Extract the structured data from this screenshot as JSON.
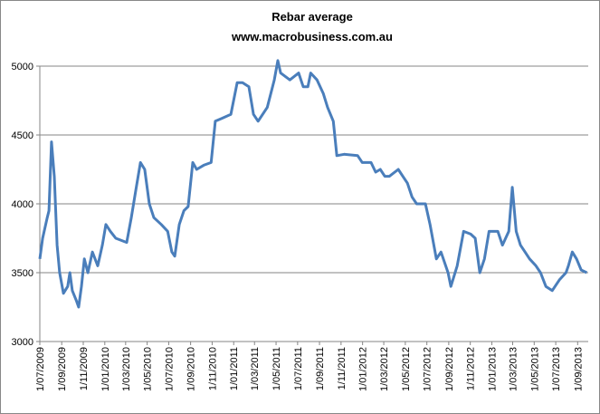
{
  "chart_data": {
    "type": "line",
    "title": "Rebar average",
    "subtitle": "www.macrobusiness.com.au",
    "x": [
      "1/07/2009",
      "9/07/2009",
      "22/07/2009",
      "27/07/2009",
      "3/08/2009",
      "11/08/2009",
      "19/08/2009",
      "26/08/2009",
      "6/09/2009",
      "18/09/2009",
      "24/09/2009",
      "1/10/2009",
      "12/10/2009",
      "19/10/2009",
      "27/10/2009",
      "4/11/2009",
      "14/11/2009",
      "27/11/2009",
      "12/12/2009",
      "25/12/2009",
      "4/01/2010",
      "17/01/2010",
      "1/02/2010",
      "4/03/2010",
      "17/03/2010",
      "30/03/2010",
      "12/04/2010",
      "24/04/2010",
      "7/05/2010",
      "20/05/2010",
      "10/06/2010",
      "28/06/2010",
      "10/07/2010",
      "18/07/2010",
      "31/07/2010",
      "13/08/2010",
      "25/08/2010",
      "7/09/2010",
      "18/09/2010",
      "8/10/2010",
      "29/10/2010",
      "10/11/2010",
      "28/11/2010",
      "24/12/2010",
      "11/01/2011",
      "26/01/2011",
      "13/02/2011",
      "26/02/2011",
      "11/03/2011",
      "6/04/2011",
      "26/04/2011",
      "6/05/2011",
      "14/05/2011",
      "9/06/2011",
      "4/07/2011",
      "17/07/2011",
      "30/07/2011",
      "7/08/2011",
      "25/08/2011",
      "12/09/2011",
      "24/09/2011",
      "10/10/2011",
      "20/10/2011",
      "10/11/2011",
      "18/12/2011",
      "31/12/2011",
      "25/01/2012",
      "7/02/2012",
      "20/02/2012",
      "4/03/2012",
      "17/03/2012",
      "11/04/2012",
      "24/04/2012",
      "7/05/2012",
      "20/05/2012",
      "2/06/2012",
      "27/06/2012",
      "10/07/2012",
      "28/07/2012",
      "10/08/2012",
      "30/08/2012",
      "7/09/2012",
      "25/09/2012",
      "13/10/2012",
      "2/11/2012",
      "15/11/2012",
      "28/11/2012",
      "11/12/2012",
      "24/12/2012",
      "18/01/2013",
      "31/01/2013",
      "18/02/2013",
      "28/02/2013",
      "11/03/2013",
      "23/03/2013",
      "5/04/2013",
      "18/04/2013",
      "6/05/2013",
      "19/05/2013",
      "3/06/2013",
      "21/06/2013",
      "12/07/2013",
      "30/07/2013",
      "6/08/2013",
      "17/08/2013",
      "29/08/2013",
      "11/09/2013",
      "27/09/2013"
    ],
    "series": [
      {
        "name": "Rebar average",
        "color": "#4a7ebb",
        "values": [
          3600,
          3750,
          3900,
          3950,
          4450,
          4200,
          3700,
          3500,
          3350,
          3400,
          3500,
          3370,
          3300,
          3250,
          3400,
          3600,
          3500,
          3650,
          3550,
          3700,
          3850,
          3800,
          3750,
          3720,
          3900,
          4100,
          4300,
          4250,
          4000,
          3900,
          3850,
          3800,
          3650,
          3620,
          3850,
          3950,
          3980,
          4300,
          4250,
          4280,
          4300,
          4600,
          4620,
          4650,
          4880,
          4880,
          4850,
          4650,
          4600,
          4700,
          4900,
          5040,
          4950,
          4900,
          4950,
          4850,
          4850,
          4950,
          4900,
          4800,
          4700,
          4600,
          4350,
          4360,
          4350,
          4300,
          4300,
          4230,
          4250,
          4200,
          4200,
          4250,
          4200,
          4150,
          4050,
          4000,
          4000,
          3850,
          3600,
          3650,
          3500,
          3400,
          3550,
          3800,
          3780,
          3750,
          3500,
          3600,
          3800,
          3800,
          3700,
          3800,
          4120,
          3800,
          3700,
          3650,
          3600,
          3550,
          3500,
          3400,
          3370,
          3450,
          3500,
          3550,
          3650,
          3600,
          3520,
          3500
        ]
      }
    ],
    "xlim": [
      "1/07/2009",
      "1/10/2013"
    ],
    "xticks": [
      "1/07/2009",
      "1/09/2009",
      "1/11/2009",
      "1/01/2010",
      "1/03/2010",
      "1/05/2010",
      "1/07/2010",
      "1/09/2010",
      "1/11/2010",
      "1/01/2011",
      "1/03/2011",
      "1/05/2011",
      "1/07/2011",
      "1/09/2011",
      "1/11/2011",
      "1/01/2012",
      "1/03/2012",
      "1/05/2012",
      "1/07/2012",
      "1/09/2012",
      "1/11/2012",
      "1/01/2013",
      "1/03/2013",
      "1/05/2013",
      "1/07/2013",
      "1/09/2013"
    ],
    "ylim": [
      3000,
      5000
    ],
    "yticks": [
      3000,
      3500,
      4000,
      4500,
      5000
    ],
    "grid": true
  }
}
